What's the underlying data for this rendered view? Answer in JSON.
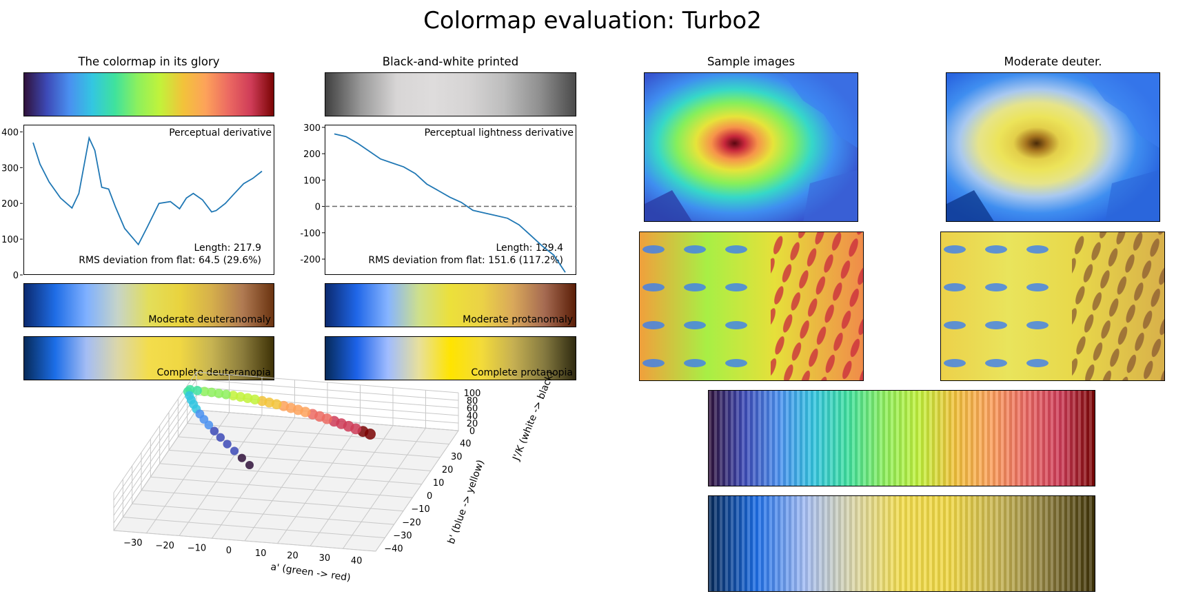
{
  "figure": {
    "title": "Colormap evaluation: Turbo2"
  },
  "panels": {
    "glory_title": "The colormap in its glory",
    "bw_title": "Black-and-white printed",
    "samples_title": "Sample images",
    "deuter_title": "Moderate deuter.",
    "mod_deuteranomaly": "Moderate deuteranomaly",
    "comp_deuteranopia": "Complete deuteranopia",
    "mod_protanomaly": "Moderate protanomaly",
    "comp_protanopia": "Complete protanopia"
  },
  "colors": {
    "turbo": [
      "#30123b",
      "#3d4ab7",
      "#4a90f0",
      "#33c6e1",
      "#3fe29d",
      "#8df05d",
      "#c2f23a",
      "#f2c33a",
      "#fda25a",
      "#ec6a62",
      "#cf3c58",
      "#7a0403"
    ],
    "bw": [
      "#404040",
      "#9a9a9a",
      "#d8d6d6",
      "#dedcdc",
      "#d6d4d4",
      "#bdbdbd",
      "#8f8f8f",
      "#4a4a4a"
    ],
    "mod_deuter": [
      "#0b2a6f",
      "#1f6de6",
      "#7fb0ff",
      "#c6d4c8",
      "#e3de5a",
      "#e9d33e",
      "#d6b04b",
      "#b07a52",
      "#6a3310"
    ],
    "comp_deuter": [
      "#062a5a",
      "#1c6ee8",
      "#a4bdf4",
      "#dcd7a8",
      "#f3dd4c",
      "#f0d743",
      "#c7b452",
      "#8b7c3c",
      "#3e3206"
    ],
    "mod_prot": [
      "#0b2a6f",
      "#1f66e8",
      "#86b4ff",
      "#cfe08a",
      "#ece03a",
      "#ebd246",
      "#d9a85a",
      "#a66b52",
      "#5a1e07"
    ],
    "comp_prot": [
      "#062a5a",
      "#1c62e8",
      "#a0bcff",
      "#e8e09a",
      "#ffe400",
      "#f3db3a",
      "#c6b052",
      "#857a40",
      "#2f2a10"
    ],
    "line": "#1f77b4"
  },
  "chart_data": [
    {
      "type": "line",
      "title": "Perceptual derivative",
      "ylim": [
        0,
        420
      ],
      "yticks": [
        "0",
        "100",
        "200",
        "300",
        "400"
      ],
      "x": [
        0,
        0.03,
        0.07,
        0.12,
        0.17,
        0.2,
        0.245,
        0.27,
        0.3,
        0.33,
        0.36,
        0.4,
        0.46,
        0.5,
        0.55,
        0.6,
        0.64,
        0.67,
        0.7,
        0.74,
        0.78,
        0.8,
        0.84,
        0.88,
        0.92,
        0.96,
        1.0
      ],
      "y": [
        370,
        310,
        260,
        215,
        187,
        228,
        383,
        348,
        245,
        240,
        190,
        130,
        85,
        135,
        200,
        205,
        185,
        215,
        228,
        210,
        176,
        180,
        200,
        228,
        255,
        270,
        290
      ],
      "annotations": [
        "Length: 217.9",
        "RMS deviation from flat: 64.5 (29.6%)"
      ]
    },
    {
      "type": "line",
      "title": "Perceptual lightness derivative",
      "ylim": [
        -260,
        310
      ],
      "yticks": [
        "-200",
        "-100",
        "0",
        "100",
        "200",
        "300"
      ],
      "x": [
        0,
        0.05,
        0.1,
        0.15,
        0.2,
        0.25,
        0.3,
        0.35,
        0.4,
        0.45,
        0.5,
        0.55,
        0.6,
        0.65,
        0.7,
        0.75,
        0.8,
        0.85,
        0.9,
        0.95,
        1.0
      ],
      "y": [
        275,
        265,
        240,
        210,
        180,
        165,
        150,
        125,
        85,
        60,
        35,
        15,
        -15,
        -25,
        -35,
        -45,
        -70,
        -110,
        -150,
        -185,
        -250
      ],
      "reference_line": 0,
      "annotations": [
        "Length: 129.4",
        "RMS deviation from flat: 151.6 (117.2%)"
      ]
    },
    {
      "type": "scatter",
      "xlabel": "a' (green -> red)",
      "ylabel": "b' (blue -> yellow)",
      "zlabel": "J'/K (white -> black)",
      "xticks": [
        "−30",
        "−20",
        "−10",
        "0",
        "10",
        "20",
        "30",
        "40"
      ],
      "yticks": [
        "−40",
        "−30",
        "−20",
        "−10",
        "0",
        "10",
        "20",
        "30",
        "40"
      ],
      "zticks": [
        "0",
        "20",
        "40",
        "60",
        "80",
        "100"
      ]
    }
  ]
}
